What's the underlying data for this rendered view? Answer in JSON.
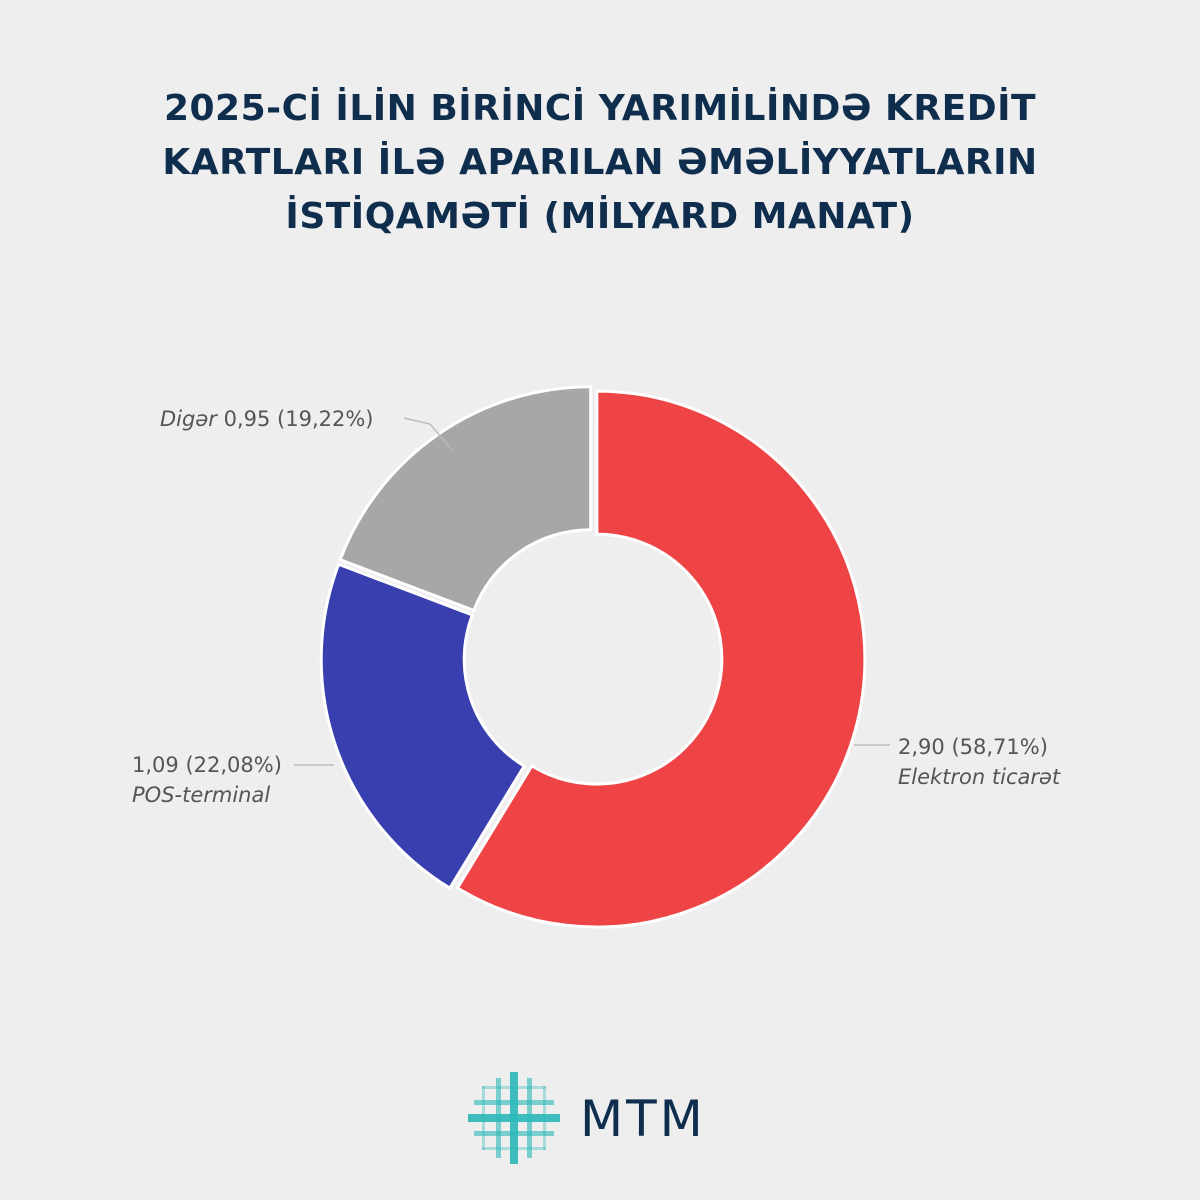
{
  "title_lines": [
    "2025-Cİ İLİN BİRİNCİ YARIMİLİNDƏ KREDİT",
    "KARTLARI İLƏ APARILAN ƏMƏLİYYATLARIN",
    "İSTİQAMƏTİ (MİLYARD MANAT)"
  ],
  "brand": "MTM",
  "chart_data": {
    "type": "pie",
    "donut": true,
    "unit": "milyard manat",
    "slices": [
      {
        "name": "Elektron ticarət",
        "value": 2.9,
        "value_label": "2,90",
        "percent": 58.71,
        "percent_label": "(58,71%)",
        "color": "#ee4446"
      },
      {
        "name": "POS-terminal",
        "value": 1.09,
        "value_label": "1,09",
        "percent": 22.08,
        "percent_label": "(22,08%)",
        "color": "#3a3fb0"
      },
      {
        "name": "Digər",
        "value": 0.95,
        "value_label": "0,95",
        "percent": 19.22,
        "percent_label": "(19,22%)",
        "color": "#a7a7a7"
      }
    ]
  }
}
